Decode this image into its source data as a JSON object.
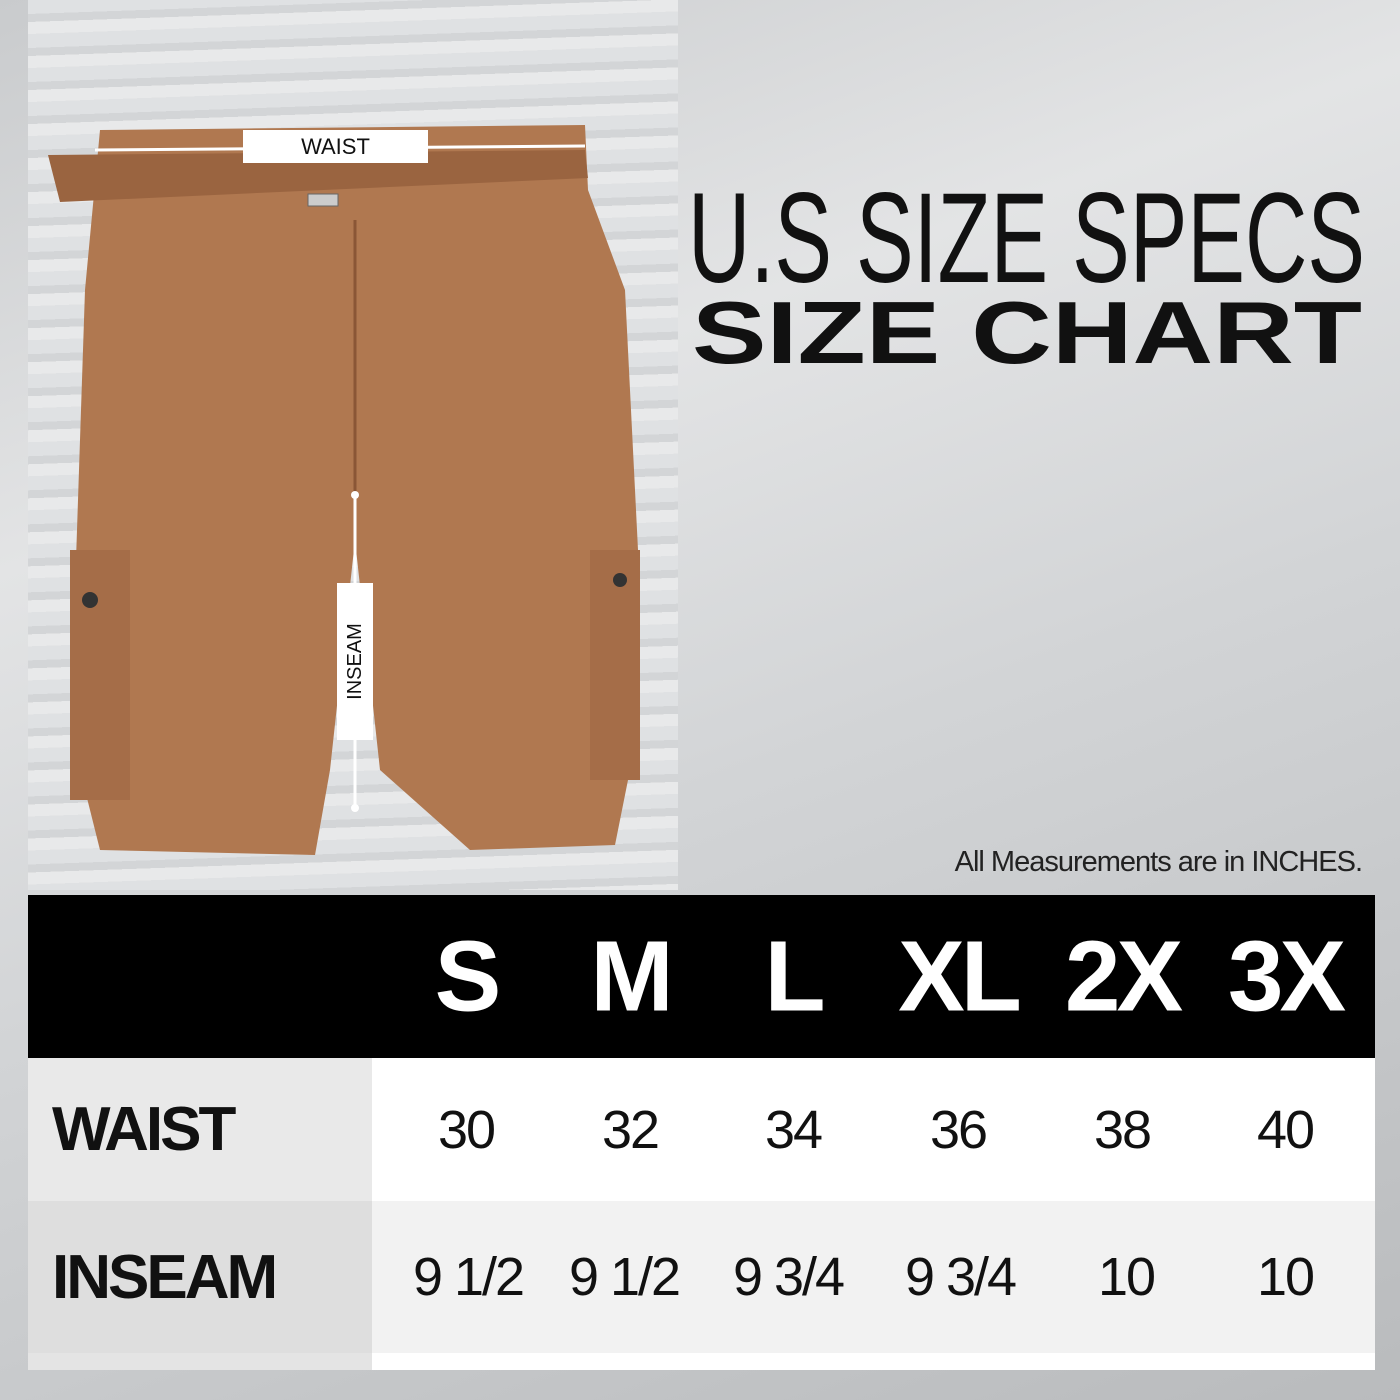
{
  "diagram": {
    "waist_label": "WAIST",
    "inseam_label": "INSEAM"
  },
  "title": {
    "line1": "U.S SIZE SPECS",
    "line2": "SIZE CHART"
  },
  "note": "All Measurements are in INCHES.",
  "size_table": {
    "columns": [
      "S",
      "M",
      "L",
      "XL",
      "2X",
      "3X"
    ],
    "rows": [
      {
        "label": "WAIST",
        "values": [
          "30",
          "32",
          "34",
          "36",
          "38",
          "40"
        ]
      },
      {
        "label": "INSEAM",
        "values": [
          "9 1/2",
          "9 1/2",
          "9 3/4",
          "9 3/4",
          "10",
          "10"
        ]
      }
    ]
  },
  "colors": {
    "shorts": "#b07850",
    "header_bg": "#000000"
  }
}
